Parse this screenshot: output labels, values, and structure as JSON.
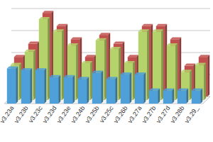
{
  "chart_data": {
    "type": "bar",
    "categories": [
      "v3.23a",
      "v3.23b",
      "v3.23c",
      "v3.23d",
      "v3.23e",
      "v3.24b",
      "v3.25b",
      "v3.25c",
      "v3.26b",
      "v3.27a",
      "v3.27b",
      "v3.27d",
      "v3.28b",
      "v3.29_"
    ],
    "series": [
      {
        "color": "#c0504d",
        "values": [
          45,
          60,
          95,
          80,
          65,
          45,
          70,
          60,
          45,
          80,
          80,
          65,
          35,
          45
        ]
      },
      {
        "color": "#b5d36b",
        "values": [
          40,
          55,
          92,
          78,
          62,
          42,
          68,
          58,
          42,
          78,
          78,
          62,
          32,
          40
        ]
      },
      {
        "color": "#4f9fd8",
        "values": [
          40,
          38,
          38,
          30,
          30,
          28,
          35,
          28,
          33,
          33,
          15,
          15,
          15,
          15
        ]
      }
    ],
    "ylim": [
      0,
      100
    ],
    "yticks": [
      0,
      25,
      50,
      75,
      100
    ],
    "grid": true,
    "tick_labels": "x"
  }
}
